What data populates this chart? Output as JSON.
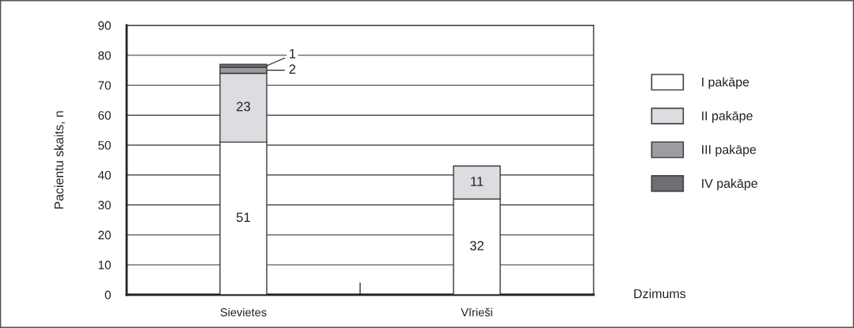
{
  "chart_data": {
    "type": "bar",
    "stacked": true,
    "categories": [
      "Sievietes",
      "Vīrieši"
    ],
    "series": [
      {
        "name": "I pakāpe",
        "color": "#ffffff",
        "values": [
          51,
          32
        ]
      },
      {
        "name": "II pakāpe",
        "color": "#dcdde0",
        "values": [
          23,
          11
        ]
      },
      {
        "name": "III pakāpe",
        "color": "#9c9da0",
        "values": [
          2,
          null
        ]
      },
      {
        "name": "IV pakāpe",
        "color": "#6e6f72",
        "values": [
          1,
          null
        ]
      }
    ],
    "ylabel": "Pacientu skaits, n",
    "xlabel": "Dzimums",
    "ylim": [
      0,
      90
    ],
    "yticks": [
      0,
      10,
      20,
      30,
      40,
      50,
      60,
      70,
      80,
      90
    ],
    "grid": "y",
    "legend": "right",
    "data_labels": true
  }
}
